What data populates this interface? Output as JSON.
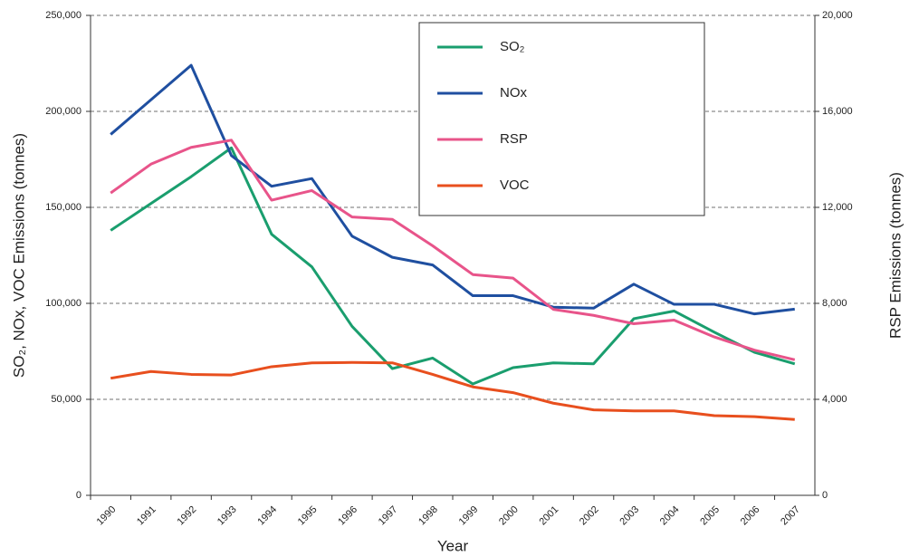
{
  "chart_data": {
    "type": "line",
    "x_label": "Year",
    "y_label": "SO₂, NOx, VOC Emissions (tonnes)",
    "y2_label": "RSP Emissions (tonnes)",
    "categories": [
      "1990",
      "1991",
      "1992",
      "1993",
      "1994",
      "1995",
      "1996",
      "1997",
      "1998",
      "1999",
      "2000",
      "2001",
      "2002",
      "2003",
      "2004",
      "2005",
      "2006",
      "2007"
    ],
    "ylim": [
      0,
      250000
    ],
    "yticks": [
      0,
      {
        "value": 50000,
        "label": "50,000"
      },
      {
        "value": 100000,
        "label": "100,000"
      },
      {
        "value": 150000,
        "label": "150,000"
      },
      {
        "value": 200000,
        "label": "200,000"
      },
      {
        "value": 250000,
        "label": "250,000"
      }
    ],
    "y2lim": [
      0,
      20000
    ],
    "y2ticks": [
      0,
      {
        "value": 4000,
        "label": "4,000"
      },
      {
        "value": 8000,
        "label": "8,000"
      },
      {
        "value": 12000,
        "label": "12,000"
      },
      {
        "value": 16000,
        "label": "16,000"
      },
      {
        "value": 20000,
        "label": "20,000"
      }
    ],
    "grid": true,
    "series": [
      {
        "name": "SO₂",
        "color": "#1a9e6e",
        "values": [
          138000,
          152000,
          166000,
          181000,
          136000,
          119000,
          88000,
          66000,
          71500,
          58000,
          66500,
          69000,
          68500,
          92000,
          96000,
          85000,
          74500,
          68500
        ]
      },
      {
        "name": "NOx",
        "color": "#1f4fa0",
        "values": [
          188000,
          206000,
          224000,
          177000,
          161000,
          165000,
          135000,
          124000,
          120000,
          104000,
          104000,
          98000,
          97500,
          110000,
          99500,
          99500,
          94500,
          97000
        ]
      },
      {
        "name": "RSP",
        "color": "#e8548a",
        "axis": "y2",
        "values": [
          12600,
          13800,
          14500,
          14800,
          12300,
          12700,
          11600,
          11500,
          10400,
          9200,
          9050,
          7750,
          7500,
          7150,
          7300,
          6600,
          6050,
          5650
        ]
      },
      {
        "name": "VOC",
        "color": "#e84f1e",
        "values": [
          61000,
          64500,
          63000,
          62700,
          67000,
          69000,
          69200,
          69000,
          63000,
          56500,
          53500,
          48000,
          44500,
          44000,
          44000,
          41500,
          41000,
          39500
        ]
      }
    ]
  }
}
